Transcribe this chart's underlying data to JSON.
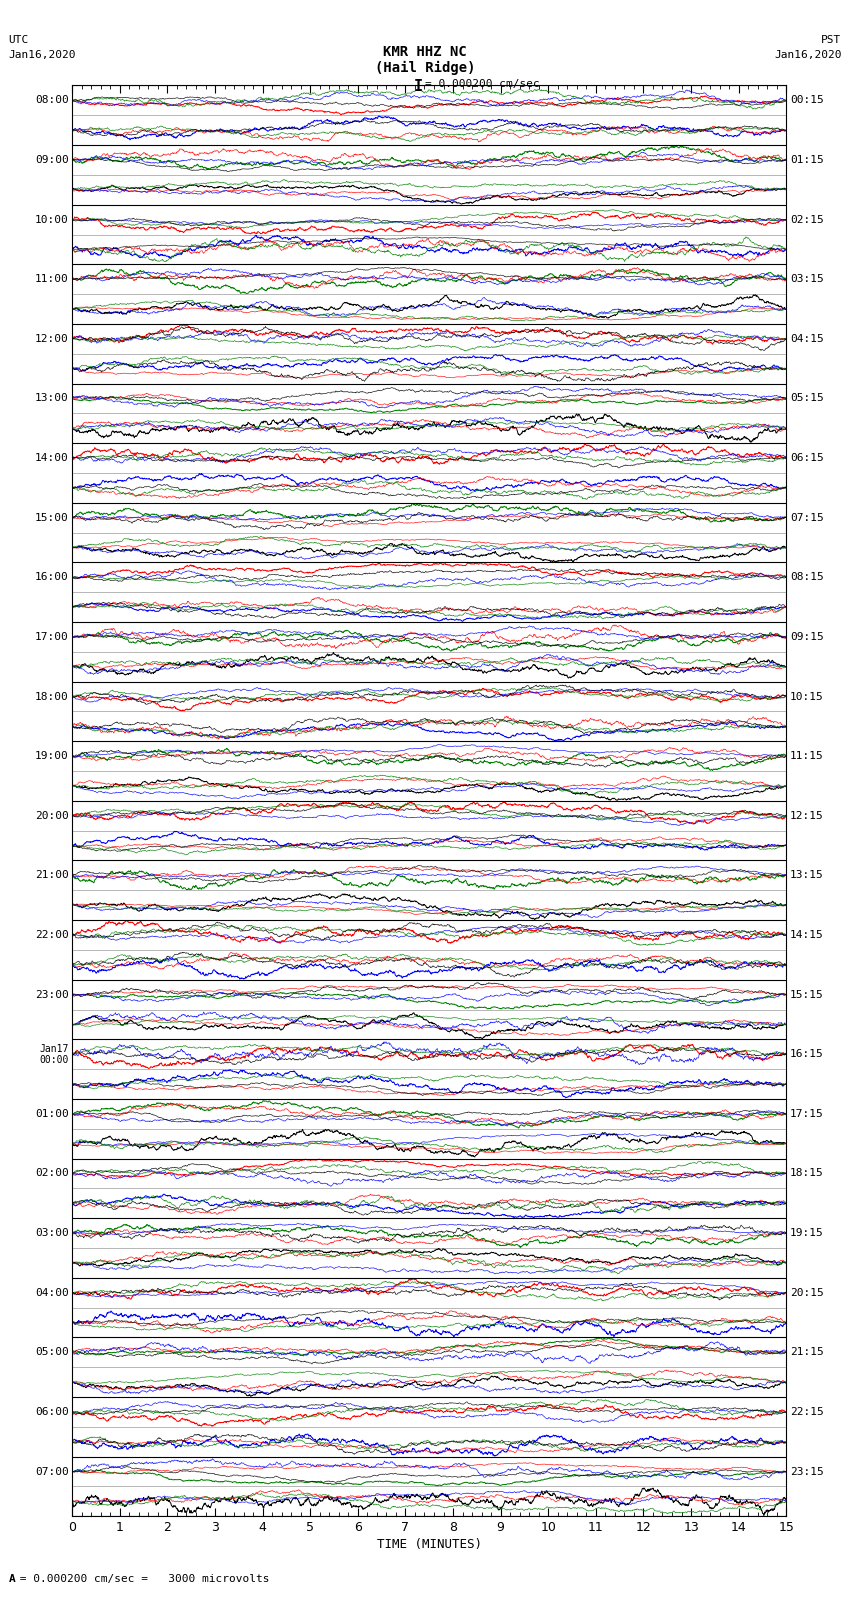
{
  "title_line1": "KMR HHZ NC",
  "title_line2": "(Hail Ridge)",
  "scale_text": "= 0.000200 cm/sec",
  "left_label": "UTC",
  "left_date": "Jan16,2020",
  "right_label": "PST",
  "right_date": "Jan16,2020",
  "xlabel": "TIME (MINUTES)",
  "bottom_note": "= 0.000200 cm/sec =   3000 microvolts",
  "xlim": [
    0,
    15
  ],
  "xticks": [
    0,
    1,
    2,
    3,
    4,
    5,
    6,
    7,
    8,
    9,
    10,
    11,
    12,
    13,
    14,
    15
  ],
  "utc_times_left": [
    "08:00",
    "09:00",
    "10:00",
    "11:00",
    "12:00",
    "13:00",
    "14:00",
    "15:00",
    "16:00",
    "17:00",
    "18:00",
    "19:00",
    "20:00",
    "21:00",
    "22:00",
    "23:00",
    "Jan17\n00:00",
    "01:00",
    "02:00",
    "03:00",
    "04:00",
    "05:00",
    "06:00",
    "07:00"
  ],
  "pst_times_right": [
    "00:15",
    "01:15",
    "02:15",
    "03:15",
    "04:15",
    "05:15",
    "06:15",
    "07:15",
    "08:15",
    "09:15",
    "10:15",
    "11:15",
    "12:15",
    "13:15",
    "14:15",
    "15:15",
    "16:15",
    "17:15",
    "18:15",
    "19:15",
    "20:15",
    "21:15",
    "22:15",
    "23:15"
  ],
  "n_traces": 48,
  "n_points": 2000,
  "row_colors": [
    "red",
    "blue",
    "green",
    "black",
    "red",
    "blue",
    "green",
    "black",
    "red",
    "blue",
    "green",
    "black",
    "red",
    "blue",
    "green",
    "black",
    "red",
    "blue",
    "green",
    "black",
    "red",
    "blue",
    "green",
    "black",
    "red",
    "blue",
    "green",
    "black",
    "red",
    "blue",
    "green",
    "black",
    "red",
    "blue",
    "green",
    "black",
    "red",
    "blue",
    "green",
    "black",
    "red",
    "blue",
    "green",
    "black",
    "red",
    "blue",
    "green",
    "black"
  ],
  "colors": [
    "red",
    "blue",
    "green",
    "black"
  ],
  "bg_color": "white",
  "fig_width": 8.5,
  "fig_height": 16.13,
  "dpi": 100
}
